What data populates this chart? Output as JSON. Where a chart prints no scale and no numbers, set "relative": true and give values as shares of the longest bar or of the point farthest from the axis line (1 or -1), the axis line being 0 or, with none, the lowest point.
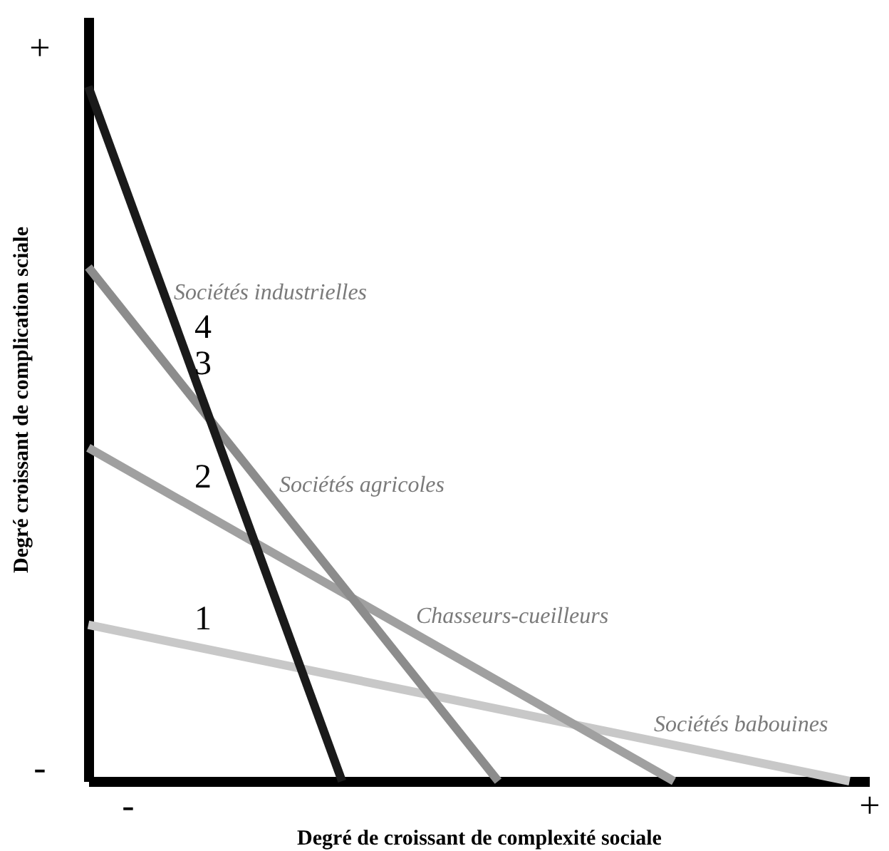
{
  "chart_data": {
    "type": "line",
    "xlabel": "Degré de croissant de complexité sociale",
    "ylabel": "Degré croissant de complication sciale",
    "relative": true,
    "categories": [
      null,
      null,
      "-",
      null,
      null,
      null,
      null,
      null,
      null,
      null,
      null,
      null,
      null,
      null,
      null,
      null,
      null,
      null,
      null,
      null,
      null,
      null,
      null,
      null,
      null,
      null,
      null,
      null,
      null,
      null,
      null,
      null,
      null,
      null,
      null,
      null,
      null,
      null,
      null,
      null,
      "+"
    ],
    "grid": false,
    "marker": "none",
    "line_style": "solid",
    "series": [
      {
        "name": "1",
        "color": "#c8c8c8",
        "values": [
          0.225,
          null,
          null,
          null,
          null,
          null,
          null,
          null,
          null,
          null,
          null,
          null,
          null,
          null,
          null,
          null,
          null,
          null,
          null,
          null,
          null,
          null,
          null,
          null,
          null,
          null,
          null,
          null,
          null,
          null,
          null,
          null,
          null,
          null,
          null,
          null,
          null,
          null,
          null,
          0,
          null
        ]
      },
      {
        "name": "2",
        "color": "#a0a0a0",
        "values": [
          0.48,
          null,
          null,
          null,
          null,
          null,
          null,
          null,
          null,
          null,
          null,
          null,
          null,
          null,
          null,
          null,
          null,
          null,
          null,
          null,
          null,
          null,
          null,
          null,
          null,
          null,
          null,
          null,
          null,
          null,
          0,
          null,
          null,
          null,
          null,
          null,
          null,
          null,
          null,
          null,
          null
        ]
      },
      {
        "name": "3",
        "color": "#8c8c8c",
        "values": [
          0.74,
          null,
          null,
          null,
          null,
          null,
          null,
          null,
          null,
          null,
          null,
          null,
          null,
          null,
          null,
          null,
          null,
          null,
          null,
          null,
          null,
          0,
          null,
          null,
          null,
          null,
          null,
          null,
          null,
          null,
          null,
          null,
          null,
          null,
          null,
          null,
          null,
          null,
          null,
          null,
          null
        ]
      },
      {
        "name": "4",
        "color": "#1a1a1a",
        "values": [
          1,
          null,
          null,
          null,
          null,
          null,
          null,
          null,
          null,
          null,
          null,
          null,
          null,
          0,
          null,
          null,
          null,
          null,
          null,
          null,
          null,
          null,
          null,
          null,
          null,
          null,
          null,
          null,
          null,
          null,
          null,
          null,
          null,
          null,
          null,
          null,
          null,
          null,
          null,
          null,
          null
        ]
      }
    ],
    "annotations": [
      "Sociétés industrielles",
      "Sociétés agricoles",
      "Chasseurs-cueilleurs",
      "Sociétés babouines",
      "+",
      "-"
    ]
  }
}
